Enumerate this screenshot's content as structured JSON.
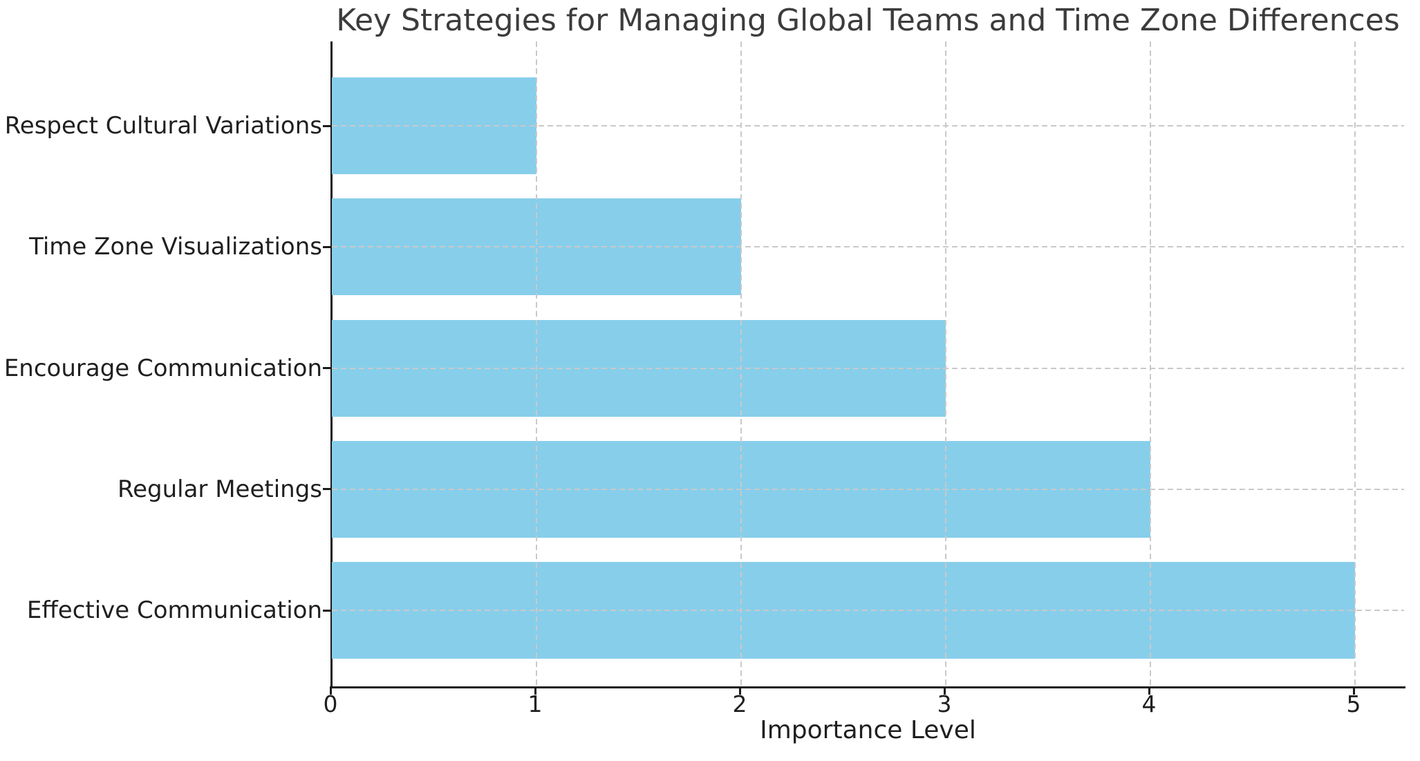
{
  "chart_data": {
    "type": "bar",
    "orientation": "horizontal",
    "title": "Key Strategies for Managing Global Teams and Time Zone Differences",
    "xlabel": "Importance Level",
    "ylabel": "",
    "categories": [
      "Respect Cultural Variations",
      "Time Zone Visualizations",
      "Encourage Communication",
      "Regular Meetings",
      "Effective Communication"
    ],
    "values": [
      1,
      2,
      3,
      4,
      5
    ],
    "x_ticks": [
      0,
      1,
      2,
      3,
      4,
      5
    ],
    "x_tick_labels": [
      "0",
      "1",
      "2",
      "3",
      "4",
      "5"
    ],
    "xlim": [
      0,
      5.25
    ],
    "grid": "dashed, drawn above bars",
    "legend": "none",
    "colors": {
      "bar_fill": "#87CEEB",
      "grid_line": "#c9c9c9",
      "axis_spine": "#1a1a1a",
      "tick_text": "#1f1f1f",
      "title_text": "#3c3c3c",
      "background": "#ffffff"
    }
  }
}
